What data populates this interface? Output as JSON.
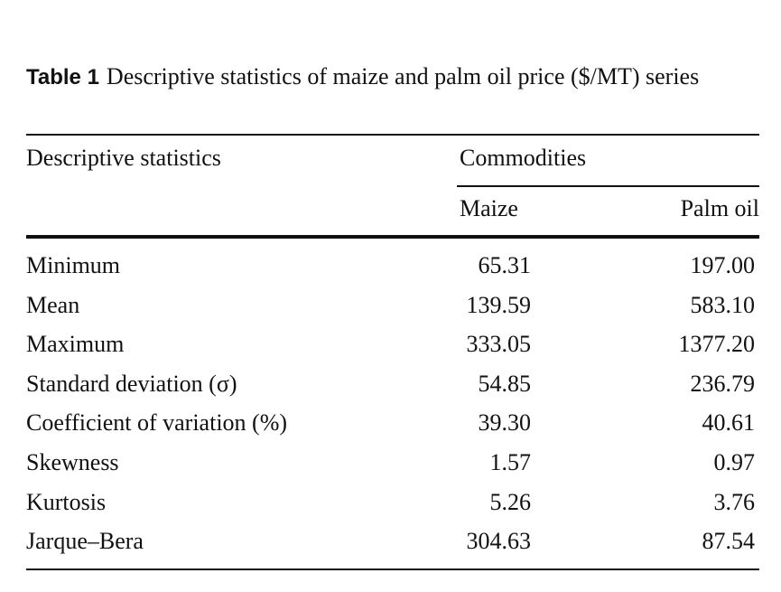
{
  "caption": {
    "label": "Table 1",
    "text": "Descriptive statistics of maize and palm oil price ($/MT) series"
  },
  "table": {
    "header": {
      "stat_col": "Descriptive statistics",
      "group": "Commodities",
      "maize": "Maize",
      "palm_oil": "Palm oil"
    },
    "rows": [
      {
        "label": "Minimum",
        "maize": "65.31",
        "palm_oil": "197.00"
      },
      {
        "label": "Mean",
        "maize": "139.59",
        "palm_oil": "583.10"
      },
      {
        "label": "Maximum",
        "maize": "333.05",
        "palm_oil": "1377.20"
      },
      {
        "label": "Standard deviation (σ)",
        "maize": "54.85",
        "palm_oil": "236.79"
      },
      {
        "label": "Coefficient of variation (%)",
        "maize": "39.30",
        "palm_oil": "40.61"
      },
      {
        "label": "Skewness",
        "maize": "1.57",
        "palm_oil": "0.97"
      },
      {
        "label": "Kurtosis",
        "maize": "5.26",
        "palm_oil": "3.76"
      },
      {
        "label": "Jarque–Bera",
        "maize": "304.63",
        "palm_oil": "87.54"
      }
    ]
  }
}
